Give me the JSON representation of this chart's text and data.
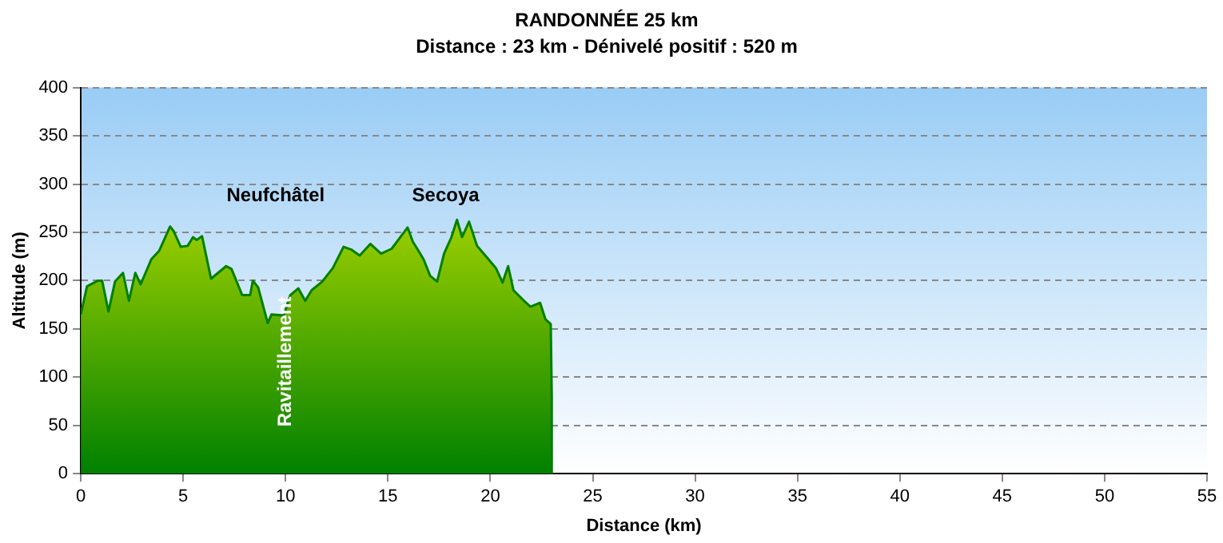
{
  "chart_data": {
    "type": "area",
    "title": "RANDONNÉE 25 km",
    "subtitle": "Distance : 23 km - Dénivelé positif : 520 m",
    "xlabel": "Distance (km)",
    "ylabel": "Altitude (m)",
    "series": [
      {
        "color": "#008000",
        "x": [
          0,
          0.3,
          0.84,
          1.04,
          1.35,
          1.67,
          2.06,
          2.35,
          2.66,
          2.92,
          3.44,
          3.83,
          4.36,
          4.54,
          4.88,
          5.22,
          5.48,
          5.66,
          5.92,
          6.36,
          7.1,
          7.36,
          7.88,
          8.27,
          8.4,
          8.66,
          9.13,
          9.31,
          9.91,
          10.23,
          10.62,
          10.96,
          11.27,
          11.79,
          12.31,
          12.83,
          13.22,
          13.62,
          14.14,
          14.66,
          15.18,
          15.57,
          15.96,
          16.22,
          16.43,
          16.74,
          17.06,
          17.4,
          17.74,
          18.1,
          18.37,
          18.62,
          18.96,
          19.35,
          19.87,
          20.27,
          20.6,
          20.87,
          21.13,
          21.65,
          21.96,
          22.43,
          22.69,
          22.95,
          23,
          23
        ],
        "values": [
          165,
          194,
          200,
          200,
          168,
          199,
          208,
          179,
          208,
          196,
          222,
          231,
          256,
          251,
          235,
          236,
          245,
          242,
          246,
          202,
          215,
          212,
          185,
          185,
          200,
          193,
          156,
          165,
          164,
          185,
          192,
          179,
          190,
          199,
          213,
          235,
          232,
          226,
          238,
          228,
          233,
          244,
          255,
          240,
          233,
          222,
          205,
          199,
          228,
          245,
          263,
          245,
          261,
          236,
          223,
          213,
          198,
          215,
          190,
          179,
          173,
          177,
          160,
          155,
          80,
          0
        ]
      }
    ],
    "xlim": [
      0,
      55
    ],
    "xticks": [
      0,
      5,
      10,
      15,
      20,
      25,
      30,
      35,
      40,
      45,
      50,
      55
    ],
    "ylim": [
      0,
      400
    ],
    "yticks": [
      0,
      50,
      100,
      150,
      200,
      250,
      300,
      350,
      400
    ],
    "grid": "y",
    "legend": false,
    "annotations": [
      "Neufchâtel",
      "Secoya",
      "Ravitaillement"
    ]
  }
}
